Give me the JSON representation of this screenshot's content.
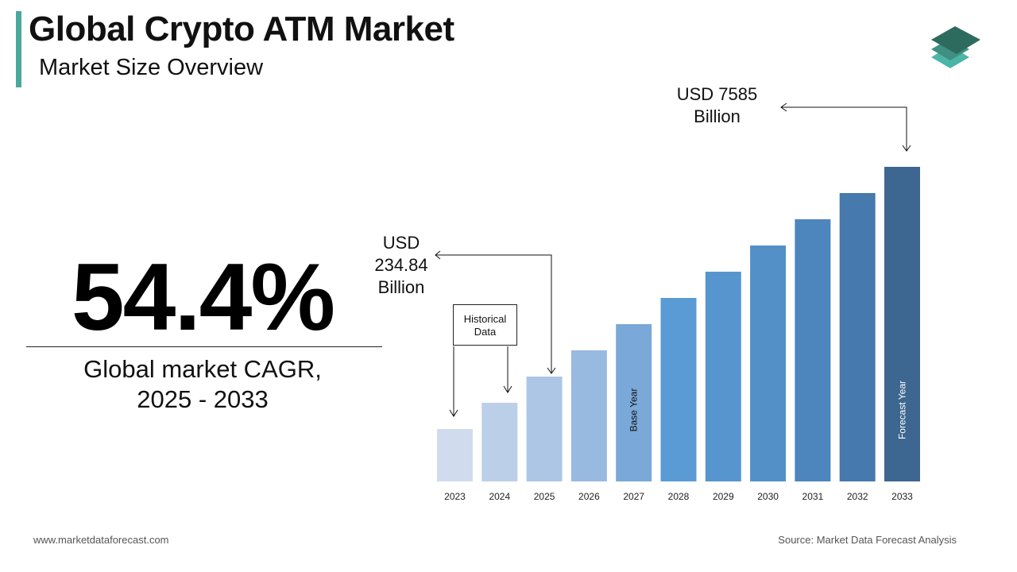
{
  "header": {
    "title": "Global Crypto ATM Market",
    "subtitle": "Market Size Overview"
  },
  "kpi": {
    "value": "54.4%",
    "label_line1": "Global market CAGR,",
    "label_line2": "2025 - 2033"
  },
  "annotations": {
    "start_value": [
      "USD",
      "234.84",
      "Billion"
    ],
    "end_value": [
      "USD 7585",
      "Billion"
    ],
    "historical": [
      "Historical",
      "Data"
    ],
    "base_year": "Base Year",
    "forecast_year": "Forecast Year"
  },
  "footer": {
    "website": "www.marketdataforecast.com",
    "source": "Source: Market Data Forecast Analysis"
  },
  "logo": {
    "colors": [
      "#2e6b5f",
      "#3f8f82",
      "#4bb5a6"
    ]
  },
  "chart_data": {
    "type": "bar",
    "categories": [
      "2023",
      "2024",
      "2025",
      "2026",
      "2027",
      "2028",
      "2029",
      "2030",
      "2031",
      "2032",
      "2033"
    ],
    "values": [
      2,
      3,
      4,
      5,
      6,
      7,
      8,
      9,
      10,
      11,
      12
    ],
    "value_note": "relative bar levels; printed values only for 2025 (USD 234.84 Billion) and 2033 (USD 7585 Billion)",
    "labeled_values": {
      "2025": 234.84,
      "2033": 7585
    },
    "unit": "USD Billion",
    "colors": [
      "#d0dcee",
      "#bccfe8",
      "#adc6e5",
      "#98b9e0",
      "#7aa8d8",
      "#5b9bd5",
      "#5795cf",
      "#5390c8",
      "#4d85bd",
      "#4679ad",
      "#3d6690"
    ],
    "grid": false,
    "legend": "none",
    "title": "",
    "xlabel": "",
    "ylabel": ""
  }
}
